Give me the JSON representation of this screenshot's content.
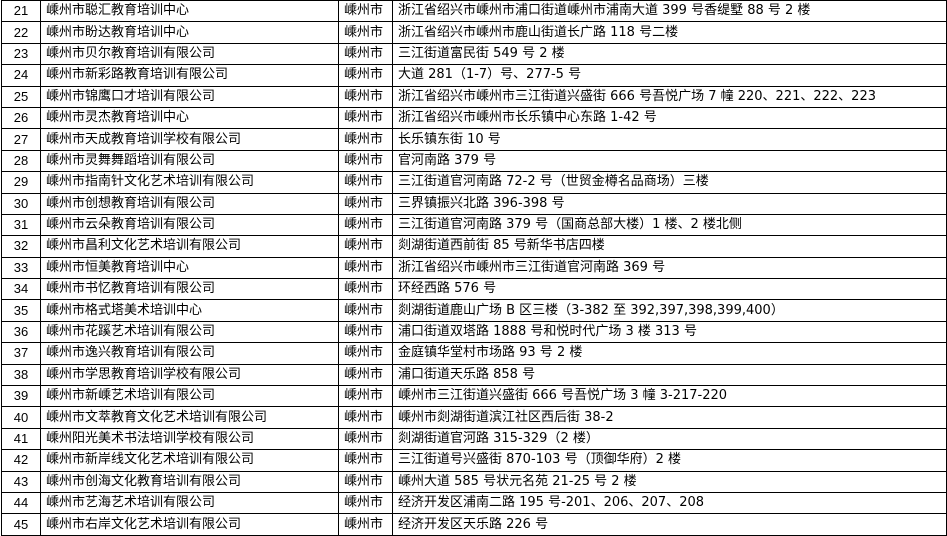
{
  "table": {
    "rows": [
      {
        "no": "21",
        "name": "嵊州市聪汇教育培训中心",
        "city": "嵊州市",
        "address": "浙江省绍兴市嵊州市浦口街道嵊州市浦南大道 399 号香缇墅 88 号 2 楼"
      },
      {
        "no": "22",
        "name": "嵊州市盼达教育培训中心",
        "city": "嵊州市",
        "address": "浙江省绍兴市嵊州市鹿山街道长广路 118 号二楼"
      },
      {
        "no": "23",
        "name": "嵊州市贝尔教育培训有限公司",
        "city": "嵊州市",
        "address": "三江街道富民街 549 号 2 楼"
      },
      {
        "no": "24",
        "name": "嵊州市新彩路教育培训有限公司",
        "city": "嵊州市",
        "address": "大道 281（1-7）号、277-5 号"
      },
      {
        "no": "25",
        "name": "嵊州市锦鹰口才培训有限公司",
        "city": "嵊州市",
        "address": "浙江省绍兴市嵊州市三江街道兴盛街 666 号吾悦广场 7 幢 220、221、222、223"
      },
      {
        "no": "26",
        "name": "嵊州市灵杰教育培训中心",
        "city": "嵊州市",
        "address": "浙江省绍兴市嵊州市长乐镇中心东路 1-42 号"
      },
      {
        "no": "27",
        "name": "嵊州市天成教育培训学校有限公司",
        "city": "嵊州市",
        "address": "长乐镇东街 10 号"
      },
      {
        "no": "28",
        "name": "嵊州市灵舞舞蹈培训有限公司",
        "city": "嵊州市",
        "address": "官河南路 379 号"
      },
      {
        "no": "29",
        "name": "嵊州市指南针文化艺术培训有限公司",
        "city": "嵊州市",
        "address": "三江街道官河南路 72-2 号（世贸金樽名品商场）三楼"
      },
      {
        "no": "30",
        "name": "嵊州市创想教育培训有限公司",
        "city": "嵊州市",
        "address": "三界镇振兴北路 396-398 号"
      },
      {
        "no": "31",
        "name": "嵊州市云朵教育培训有限公司",
        "city": "嵊州市",
        "address": "三江街道官河南路 379 号（国商总部大楼）1 楼、2 楼北侧"
      },
      {
        "no": "32",
        "name": "嵊州市昌利文化艺术培训有限公司",
        "city": "嵊州市",
        "address": "剡湖街道西前街 85 号新华书店四楼"
      },
      {
        "no": "33",
        "name": "嵊州市恒美教育培训中心",
        "city": "嵊州市",
        "address": "浙江省绍兴市嵊州市三江街道官河南路 369 号"
      },
      {
        "no": "34",
        "name": "嵊州市书忆教育培训有限公司",
        "city": "嵊州市",
        "address": "环经西路 576 号"
      },
      {
        "no": "35",
        "name": "嵊州市格式塔美术培训中心",
        "city": "嵊州市",
        "address": "剡湖街道鹿山广场 B 区三楼（3-382 至 392,397,398,399,400）"
      },
      {
        "no": "36",
        "name": "嵊州市花蹊艺术培训有限公司",
        "city": "嵊州市",
        "address": "浦口街道双塔路 1888 号和悦时代广场 3 楼 313 号"
      },
      {
        "no": "37",
        "name": "嵊州市逸兴教育培训有限公司",
        "city": "嵊州市",
        "address": "金庭镇华堂村市场路 93 号 2 楼"
      },
      {
        "no": "38",
        "name": "嵊州市学思教育培训学校有限公司",
        "city": "嵊州市",
        "address": "浦口街道天乐路 858 号"
      },
      {
        "no": "39",
        "name": "嵊州市新嵊艺术培训有限公司",
        "city": "嵊州市",
        "address": "嵊州市三江街道兴盛街 666 号吾悦广场 3 幢 3-217-220"
      },
      {
        "no": "40",
        "name": "嵊州市文萃教育文化艺术培训有限公司",
        "city": "嵊州市",
        "address": "嵊州市剡湖街道滨江社区西后街 38-2"
      },
      {
        "no": "41",
        "name": "嵊州阳光美术书法培训学校有限公司",
        "city": "嵊州市",
        "address": "剡湖街道官河路 315-329（2 楼）"
      },
      {
        "no": "42",
        "name": "嵊州市新岸线文化艺术培训有限公司",
        "city": "嵊州市",
        "address": "三江街道号兴盛街 870-103 号（顶御华府）2 楼"
      },
      {
        "no": "43",
        "name": "嵊州市创海文化教育培训有限公司",
        "city": "嵊州市",
        "address": "嵊州大道 585 号状元名苑 21-25 号 2 楼"
      },
      {
        "no": "44",
        "name": "嵊州市艺海艺术培训有限公司",
        "city": "嵊州市",
        "address": "经济开发区浦南二路 195 号-201、206、207、208"
      },
      {
        "no": "45",
        "name": "嵊州市右岸文化艺术培训有限公司",
        "city": "嵊州市",
        "address": "经济开发区天乐路 226 号"
      }
    ]
  }
}
